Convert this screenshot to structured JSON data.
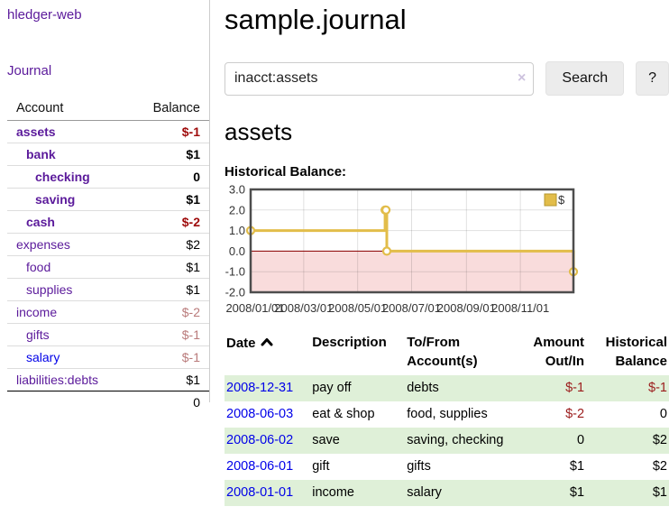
{
  "app": {
    "title": "hledger-web"
  },
  "sidebar": {
    "journal_link": "Journal",
    "headers": {
      "account": "Account",
      "balance": "Balance"
    },
    "accounts": [
      {
        "name": "assets",
        "balance": "$-1"
      },
      {
        "name": "bank",
        "balance": "$1"
      },
      {
        "name": "checking",
        "balance": "0"
      },
      {
        "name": "saving",
        "balance": "$1"
      },
      {
        "name": "cash",
        "balance": "$-2"
      },
      {
        "name": "expenses",
        "balance": "$2"
      },
      {
        "name": "food",
        "balance": "$1"
      },
      {
        "name": "supplies",
        "balance": "$1"
      },
      {
        "name": "income",
        "balance": "$-2"
      },
      {
        "name": "gifts",
        "balance": "$-1"
      },
      {
        "name": "salary",
        "balance": "$-1"
      },
      {
        "name": "liabilities:debts",
        "balance": "$1"
      }
    ],
    "total": "0"
  },
  "main": {
    "title": "sample.journal",
    "search": {
      "value": "inacct:assets",
      "clear_icon": "×",
      "button_label": "Search",
      "help_label": "?"
    },
    "account_heading": "assets",
    "chart_label": "Historical Balance:"
  },
  "chart_data": {
    "type": "line",
    "title": "Historical Balance",
    "step": true,
    "x_domain": [
      "2008-01-01",
      "2008-12-31"
    ],
    "x_ticks": [
      "2008/01/01",
      "2008/03/01",
      "2008/05/01",
      "2008/07/01",
      "2008/09/01",
      "2008/11/01"
    ],
    "y_ticks": [
      3.0,
      2.0,
      1.0,
      0.0,
      -1.0,
      -2.0
    ],
    "ylim": [
      -2,
      3
    ],
    "grid": true,
    "legend_position": "top-right",
    "series": [
      {
        "name": "$",
        "color": "#e2bd4a",
        "points": [
          [
            "2008-01-01",
            1
          ],
          [
            "2008-06-01",
            2
          ],
          [
            "2008-06-02",
            2
          ],
          [
            "2008-06-03",
            0
          ],
          [
            "2008-12-31",
            -1
          ]
        ]
      }
    ],
    "negative_region_color": "#f9dcdc",
    "zero_line_color": "#8b0000"
  },
  "register": {
    "headers": {
      "date": "Date",
      "description": "Description",
      "account_line1": "To/From",
      "account_line2": "Account(s)",
      "amount_line1": "Amount",
      "amount_line2": "Out/In",
      "balance_line1": "Historical",
      "balance_line2": "Balance"
    },
    "rows": [
      {
        "date": "2008-12-31",
        "description": "pay off",
        "accounts": "debts",
        "amount": "$-1",
        "balance": "$-1"
      },
      {
        "date": "2008-06-03",
        "description": "eat & shop",
        "accounts": "food, supplies",
        "amount": "$-2",
        "balance": "0"
      },
      {
        "date": "2008-06-02",
        "description": "save",
        "accounts": "saving, checking",
        "amount": "0",
        "balance": "$2"
      },
      {
        "date": "2008-06-01",
        "description": "gift",
        "accounts": "gifts",
        "amount": "$1",
        "balance": "$2"
      },
      {
        "date": "2008-01-01",
        "description": "income",
        "accounts": "salary",
        "amount": "$1",
        "balance": "$1"
      }
    ]
  }
}
